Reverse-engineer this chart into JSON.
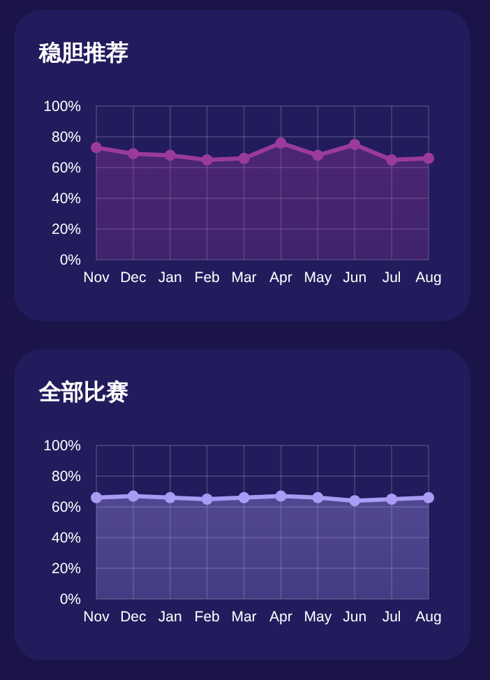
{
  "chart_data": [
    {
      "type": "area",
      "title": "稳胆推荐",
      "categories": [
        "Nov",
        "Dec",
        "Jan",
        "Feb",
        "Mar",
        "Apr",
        "May",
        "Jun",
        "Jul",
        "Aug"
      ],
      "series": [
        {
          "color": "#9a3b9c",
          "values": [
            73,
            69,
            68,
            65,
            66,
            76,
            68,
            75,
            65,
            66
          ]
        }
      ],
      "ylim": [
        0,
        100
      ],
      "yticks": [
        {
          "value": 0,
          "label": "0%"
        },
        {
          "value": 20,
          "label": "20%"
        },
        {
          "value": 40,
          "label": "40%"
        },
        {
          "value": 60,
          "label": "60%"
        },
        {
          "value": 80,
          "label": "80%"
        },
        {
          "value": 100,
          "label": "100%"
        }
      ],
      "grid": true,
      "marker": "circle"
    },
    {
      "type": "area",
      "title": "全部比赛",
      "categories": [
        "Nov",
        "Dec",
        "Jan",
        "Feb",
        "Mar",
        "Apr",
        "May",
        "Jun",
        "Jul",
        "Aug"
      ],
      "series": [
        {
          "color": "#a99cf5",
          "values": [
            66,
            67,
            66,
            65,
            66,
            67,
            66,
            64,
            65,
            66
          ]
        }
      ],
      "ylim": [
        0,
        100
      ],
      "yticks": [
        {
          "value": 0,
          "label": "0%"
        },
        {
          "value": 20,
          "label": "20%"
        },
        {
          "value": 40,
          "label": "40%"
        },
        {
          "value": 60,
          "label": "60%"
        },
        {
          "value": 80,
          "label": "80%"
        },
        {
          "value": 100,
          "label": "100%"
        }
      ],
      "grid": true,
      "marker": "circle"
    }
  ]
}
